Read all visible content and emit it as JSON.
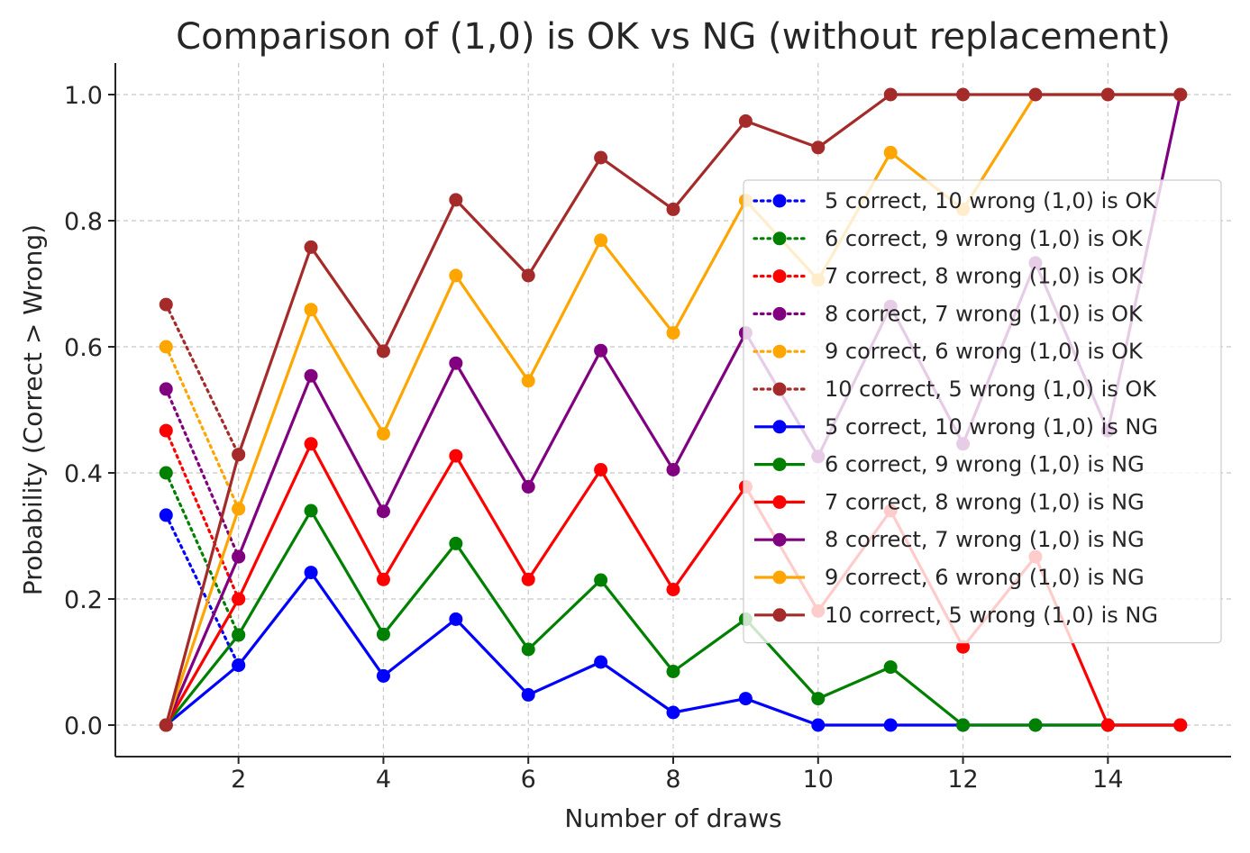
{
  "chart_data": {
    "type": "line",
    "title": "Comparison of (1,0) is OK vs NG (without replacement)",
    "xlabel": "Number of draws",
    "ylabel": "Probability (Correct > Wrong)",
    "xlim": [
      0.3,
      15.7
    ],
    "ylim": [
      -0.05,
      1.05
    ],
    "xticks": [
      2,
      4,
      6,
      8,
      10,
      12,
      14
    ],
    "yticks": [
      0.0,
      0.2,
      0.4,
      0.6,
      0.8,
      1.0
    ],
    "grid": true,
    "legend_position": "right",
    "series": [
      {
        "name": "5 correct, 10 wrong (1,0) is OK",
        "color": "#0000ff",
        "style": "dotted",
        "x": [
          1,
          2
        ],
        "values": [
          0.333,
          0.095
        ]
      },
      {
        "name": "6 correct, 9 wrong (1,0) is OK",
        "color": "#008000",
        "style": "dotted",
        "x": [
          1,
          2
        ],
        "values": [
          0.4,
          0.143
        ]
      },
      {
        "name": "7 correct, 8 wrong (1,0) is OK",
        "color": "#ff0000",
        "style": "dotted",
        "x": [
          1,
          2
        ],
        "values": [
          0.467,
          0.2
        ]
      },
      {
        "name": "8 correct, 7 wrong (1,0) is OK",
        "color": "#800080",
        "style": "dotted",
        "x": [
          1,
          2
        ],
        "values": [
          0.533,
          0.267
        ]
      },
      {
        "name": "9 correct, 6 wrong (1,0) is OK",
        "color": "#ffa500",
        "style": "dotted",
        "x": [
          1,
          2
        ],
        "values": [
          0.6,
          0.343
        ]
      },
      {
        "name": "10 correct, 5 wrong (1,0) is OK",
        "color": "#a52a2a",
        "style": "dotted",
        "x": [
          1,
          2
        ],
        "values": [
          0.667,
          0.429
        ]
      },
      {
        "name": "5 correct, 10 wrong (1,0) is NG",
        "color": "#0000ff",
        "style": "solid",
        "x": [
          1,
          2,
          3,
          4,
          5,
          6,
          7,
          8,
          9,
          10,
          11,
          12,
          13,
          14,
          15
        ],
        "values": [
          0,
          0.095,
          0.242,
          0.078,
          0.168,
          0.048,
          0.1,
          0.02,
          0.042,
          0,
          0,
          0,
          0,
          0,
          0
        ]
      },
      {
        "name": "6 correct, 9 wrong (1,0) is NG",
        "color": "#008000",
        "style": "solid",
        "x": [
          1,
          2,
          3,
          4,
          5,
          6,
          7,
          8,
          9,
          10,
          11,
          12,
          13,
          14,
          15
        ],
        "values": [
          0,
          0.143,
          0.34,
          0.144,
          0.288,
          0.12,
          0.23,
          0.085,
          0.168,
          0.042,
          0.092,
          0,
          0,
          0,
          0
        ]
      },
      {
        "name": "7 correct, 8 wrong (1,0) is NG",
        "color": "#ff0000",
        "style": "solid",
        "x": [
          1,
          2,
          3,
          4,
          5,
          6,
          7,
          8,
          9,
          10,
          11,
          12,
          13,
          14,
          15
        ],
        "values": [
          0,
          0.2,
          0.446,
          0.231,
          0.427,
          0.231,
          0.405,
          0.215,
          0.378,
          0.181,
          0.34,
          0.124,
          0.267,
          0,
          0
        ]
      },
      {
        "name": "8 correct, 7 wrong (1,0) is NG",
        "color": "#800080",
        "style": "solid",
        "x": [
          1,
          2,
          3,
          4,
          5,
          6,
          7,
          8,
          9,
          10,
          11,
          12,
          13,
          14,
          15
        ],
        "values": [
          0,
          0.267,
          0.554,
          0.339,
          0.574,
          0.378,
          0.594,
          0.405,
          0.622,
          0.426,
          0.664,
          0.446,
          0.733,
          0.467,
          1.0
        ]
      },
      {
        "name": "9 correct, 6 wrong (1,0) is NG",
        "color": "#ffa500",
        "style": "solid",
        "x": [
          1,
          2,
          3,
          4,
          5,
          6,
          7,
          8,
          9,
          10,
          11,
          12,
          13,
          14,
          15
        ],
        "values": [
          0,
          0.343,
          0.659,
          0.462,
          0.713,
          0.546,
          0.769,
          0.622,
          0.832,
          0.706,
          0.908,
          0.818,
          1.0,
          1.0,
          1.0
        ]
      },
      {
        "name": "10 correct, 5 wrong (1,0) is NG",
        "color": "#a52a2a",
        "style": "solid",
        "x": [
          1,
          2,
          3,
          4,
          5,
          6,
          7,
          8,
          9,
          10,
          11,
          12,
          13,
          14,
          15
        ],
        "values": [
          0,
          0.429,
          0.758,
          0.593,
          0.833,
          0.713,
          0.9,
          0.818,
          0.958,
          0.916,
          1.0,
          1.0,
          1.0,
          1.0,
          1.0
        ]
      }
    ]
  }
}
